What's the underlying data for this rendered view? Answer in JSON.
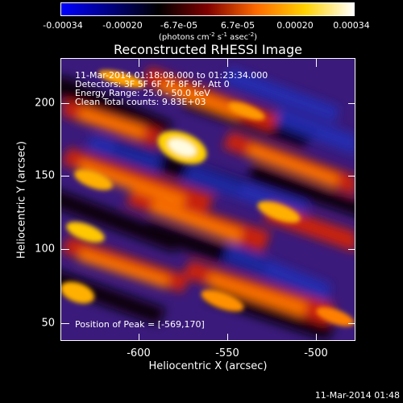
{
  "colorbar": {
    "tick_labels": [
      "-0.00034",
      "-0.00020",
      "-6.7e-05",
      "6.7e-05",
      "0.00020",
      "0.00034"
    ],
    "units_pre": "(photons cm",
    "units_exp1": "-2",
    "units_mid1": " s",
    "units_exp2": "-1",
    "units_mid2": " asec",
    "units_exp3": "-2",
    "units_post": ")",
    "gradient_colors": [
      "#0000ff",
      "#000080",
      "#000000",
      "#800000",
      "#ff6a00",
      "#ffd200",
      "#ffffff"
    ]
  },
  "title": "Reconstructed RHESSI Image",
  "info_lines": [
    "11-Mar-2014 01:18:08.000 to 01:23:34.000",
    "Detectors: 3F 5F 6F 7F 8F 9F, Att 0",
    "Energy Range: 25.0 - 50.0 keV",
    "Clean     Total counts: 9.83E+03"
  ],
  "peak_label": "Position of Peak = [-569,170]",
  "x_axis": {
    "label": "Heliocentric X (arcsec)",
    "ticks": [
      "-600",
      "-550",
      "-500"
    ]
  },
  "y_axis": {
    "label": "Heliocentric Y (arcsec)",
    "ticks": [
      "200",
      "150",
      "100",
      "50"
    ]
  },
  "timestamp": "11-Mar-2014 01:48"
}
